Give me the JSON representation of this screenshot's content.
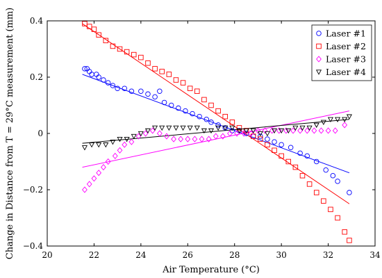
{
  "chart_data": {
    "type": "scatter",
    "title": "",
    "xlabel": "Air Temperature (°C)",
    "ylabel": "Change in Distance from T = 29°C measurement (mm)",
    "xlim": [
      20,
      34
    ],
    "ylim": [
      -0.4,
      0.4
    ],
    "xticks": [
      20,
      22,
      24,
      26,
      28,
      30,
      32,
      34
    ],
    "xtick_labels": [
      "20",
      "22",
      "24",
      "26",
      "28",
      "30",
      "32",
      "34"
    ],
    "yticks": [
      -0.4,
      -0.2,
      0,
      0.2,
      0.4
    ],
    "ytick_labels": [
      "−0.4",
      "−0.2",
      "0",
      "0.2",
      "0.4"
    ],
    "grid": false,
    "legend_position": "top-right",
    "series": [
      {
        "name": "Laser #1",
        "marker": "circle",
        "color": "#0000ff",
        "points": [
          [
            21.6,
            0.23
          ],
          [
            21.7,
            0.23
          ],
          [
            21.8,
            0.22
          ],
          [
            21.9,
            0.21
          ],
          [
            22.1,
            0.21
          ],
          [
            22.2,
            0.2
          ],
          [
            22.4,
            0.19
          ],
          [
            22.6,
            0.18
          ],
          [
            22.8,
            0.17
          ],
          [
            23.0,
            0.16
          ],
          [
            23.3,
            0.16
          ],
          [
            23.6,
            0.15
          ],
          [
            24.0,
            0.15
          ],
          [
            24.3,
            0.14
          ],
          [
            24.6,
            0.13
          ],
          [
            24.8,
            0.15
          ],
          [
            25.0,
            0.11
          ],
          [
            25.3,
            0.1
          ],
          [
            25.6,
            0.09
          ],
          [
            25.9,
            0.08
          ],
          [
            26.2,
            0.07
          ],
          [
            26.5,
            0.06
          ],
          [
            26.8,
            0.05
          ],
          [
            27.0,
            0.04
          ],
          [
            27.3,
            0.03
          ],
          [
            27.6,
            0.02
          ],
          [
            27.9,
            0.01
          ],
          [
            28.2,
            0.01
          ],
          [
            28.5,
            0.0
          ],
          [
            28.8,
            -0.01
          ],
          [
            29.1,
            -0.01
          ],
          [
            29.4,
            -0.02
          ],
          [
            29.7,
            -0.03
          ],
          [
            30.0,
            -0.04
          ],
          [
            30.4,
            -0.05
          ],
          [
            30.8,
            -0.07
          ],
          [
            31.1,
            -0.08
          ],
          [
            31.5,
            -0.1
          ],
          [
            31.9,
            -0.13
          ],
          [
            32.2,
            -0.15
          ],
          [
            32.4,
            -0.17
          ],
          [
            32.9,
            -0.21
          ]
        ],
        "fit": [
          [
            21.5,
            0.21
          ],
          [
            32.9,
            -0.14
          ]
        ]
      },
      {
        "name": "Laser #2",
        "marker": "square",
        "color": "#ff0000",
        "points": [
          [
            21.6,
            0.39
          ],
          [
            21.8,
            0.38
          ],
          [
            22.0,
            0.37
          ],
          [
            22.2,
            0.35
          ],
          [
            22.5,
            0.33
          ],
          [
            22.8,
            0.31
          ],
          [
            23.1,
            0.3
          ],
          [
            23.4,
            0.29
          ],
          [
            23.7,
            0.28
          ],
          [
            24.0,
            0.27
          ],
          [
            24.3,
            0.25
          ],
          [
            24.6,
            0.23
          ],
          [
            24.9,
            0.22
          ],
          [
            25.2,
            0.21
          ],
          [
            25.5,
            0.19
          ],
          [
            25.8,
            0.18
          ],
          [
            26.1,
            0.16
          ],
          [
            26.4,
            0.15
          ],
          [
            26.7,
            0.12
          ],
          [
            27.0,
            0.1
          ],
          [
            27.3,
            0.08
          ],
          [
            27.6,
            0.06
          ],
          [
            27.9,
            0.04
          ],
          [
            28.2,
            0.02
          ],
          [
            28.5,
            0.01
          ],
          [
            28.8,
            -0.01
          ],
          [
            29.1,
            -0.02
          ],
          [
            29.4,
            -0.04
          ],
          [
            29.7,
            -0.06
          ],
          [
            30.0,
            -0.08
          ],
          [
            30.3,
            -0.1
          ],
          [
            30.6,
            -0.12
          ],
          [
            30.9,
            -0.15
          ],
          [
            31.2,
            -0.18
          ],
          [
            31.5,
            -0.21
          ],
          [
            31.8,
            -0.24
          ],
          [
            32.1,
            -0.27
          ],
          [
            32.4,
            -0.3
          ],
          [
            32.7,
            -0.35
          ],
          [
            32.9,
            -0.38
          ]
        ],
        "fit": [
          [
            21.5,
            0.39
          ],
          [
            32.9,
            -0.25
          ]
        ]
      },
      {
        "name": "Laser #3",
        "marker": "diamond",
        "color": "#ff00ff",
        "points": [
          [
            21.6,
            -0.2
          ],
          [
            21.8,
            -0.18
          ],
          [
            22.0,
            -0.16
          ],
          [
            22.2,
            -0.14
          ],
          [
            22.4,
            -0.12
          ],
          [
            22.6,
            -0.1
          ],
          [
            22.9,
            -0.08
          ],
          [
            23.1,
            -0.06
          ],
          [
            23.3,
            -0.04
          ],
          [
            23.6,
            -0.03
          ],
          [
            23.9,
            -0.01
          ],
          [
            24.2,
            0.0
          ],
          [
            24.5,
            0.01
          ],
          [
            24.8,
            0.0
          ],
          [
            25.1,
            -0.01
          ],
          [
            25.4,
            -0.02
          ],
          [
            25.7,
            -0.02
          ],
          [
            26.0,
            -0.02
          ],
          [
            26.3,
            -0.02
          ],
          [
            26.6,
            -0.02
          ],
          [
            26.9,
            -0.02
          ],
          [
            27.2,
            -0.01
          ],
          [
            27.5,
            -0.01
          ],
          [
            27.8,
            0.0
          ],
          [
            28.1,
            0.0
          ],
          [
            28.4,
            0.0
          ],
          [
            28.7,
            0.0
          ],
          [
            29.0,
            0.01
          ],
          [
            29.3,
            0.01
          ],
          [
            29.6,
            0.01
          ],
          [
            29.9,
            0.01
          ],
          [
            30.2,
            0.01
          ],
          [
            30.5,
            0.01
          ],
          [
            30.8,
            0.01
          ],
          [
            31.1,
            0.01
          ],
          [
            31.4,
            0.01
          ],
          [
            31.7,
            0.01
          ],
          [
            32.0,
            0.01
          ],
          [
            32.3,
            0.01
          ],
          [
            32.7,
            0.03
          ]
        ],
        "fit": [
          [
            21.5,
            -0.12
          ],
          [
            32.9,
            0.08
          ]
        ]
      },
      {
        "name": "Laser #4",
        "marker": "triangle-down",
        "color": "#000000",
        "points": [
          [
            21.6,
            -0.05
          ],
          [
            21.9,
            -0.04
          ],
          [
            22.2,
            -0.04
          ],
          [
            22.5,
            -0.04
          ],
          [
            22.8,
            -0.03
          ],
          [
            23.1,
            -0.02
          ],
          [
            23.4,
            -0.02
          ],
          [
            23.7,
            -0.01
          ],
          [
            24.0,
            0.0
          ],
          [
            24.3,
            0.01
          ],
          [
            24.6,
            0.02
          ],
          [
            24.9,
            0.02
          ],
          [
            25.2,
            0.02
          ],
          [
            25.5,
            0.02
          ],
          [
            25.8,
            0.02
          ],
          [
            26.1,
            0.02
          ],
          [
            26.4,
            0.02
          ],
          [
            26.7,
            0.01
          ],
          [
            27.0,
            0.01
          ],
          [
            27.3,
            0.02
          ],
          [
            27.6,
            0.02
          ],
          [
            27.9,
            0.02
          ],
          [
            28.2,
            0.01
          ],
          [
            28.5,
            0.01
          ],
          [
            28.8,
            0.01
          ],
          [
            29.1,
            0.0
          ],
          [
            29.4,
            0.0
          ],
          [
            29.7,
            0.01
          ],
          [
            30.0,
            0.01
          ],
          [
            30.3,
            0.01
          ],
          [
            30.6,
            0.02
          ],
          [
            30.9,
            0.02
          ],
          [
            31.2,
            0.02
          ],
          [
            31.5,
            0.03
          ],
          [
            31.8,
            0.04
          ],
          [
            32.1,
            0.05
          ],
          [
            32.4,
            0.05
          ],
          [
            32.7,
            0.05
          ],
          [
            32.9,
            0.06
          ]
        ],
        "fit": [
          [
            21.5,
            -0.035
          ],
          [
            32.9,
            0.05
          ]
        ]
      }
    ]
  }
}
